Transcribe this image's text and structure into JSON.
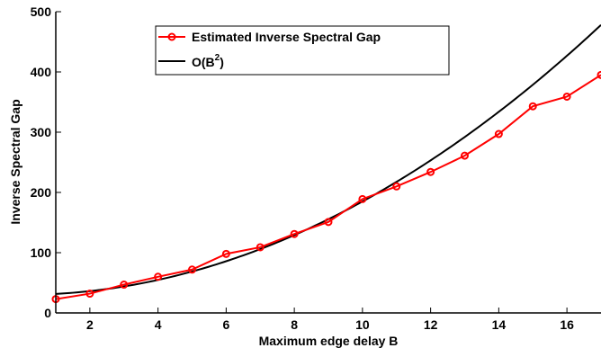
{
  "chart_data": {
    "type": "line",
    "xlabel": "Maximum edge delay B",
    "ylabel": "Inverse Spectral Gap",
    "xlim": [
      1,
      17
    ],
    "ylim": [
      0,
      500
    ],
    "xticks": [
      2,
      4,
      6,
      8,
      10,
      12,
      14,
      16
    ],
    "yticks": [
      0,
      100,
      200,
      300,
      400,
      500
    ],
    "grid": false,
    "legend_position": "top-center",
    "series": [
      {
        "name": "Estimated Inverse Spectral Gap",
        "color": "#ff0000",
        "marker": "circle",
        "x": [
          1,
          2,
          3,
          4,
          5,
          6,
          7,
          8,
          9,
          10,
          11,
          12,
          13,
          14,
          15,
          16,
          17
        ],
        "y": [
          23,
          32,
          47,
          60,
          72,
          98,
          109,
          131,
          151,
          189,
          210,
          234,
          261,
          297,
          343,
          359,
          395
        ]
      },
      {
        "name": "O(B²)",
        "name_base": "O(B",
        "name_sup": "2",
        "name_tail": ")",
        "color": "#000000",
        "marker": "none",
        "formula": "y = 1.55*B^2 + 30",
        "x": [
          1,
          2,
          3,
          4,
          5,
          6,
          7,
          8,
          9,
          10,
          11,
          12,
          13,
          14,
          15,
          16,
          17
        ],
        "y": [
          31.6,
          36.2,
          44.0,
          54.8,
          68.8,
          85.8,
          106.0,
          129.2,
          155.6,
          185.0,
          217.6,
          253.2,
          292.0,
          333.8,
          378.8,
          426.8,
          478.0
        ]
      }
    ]
  }
}
